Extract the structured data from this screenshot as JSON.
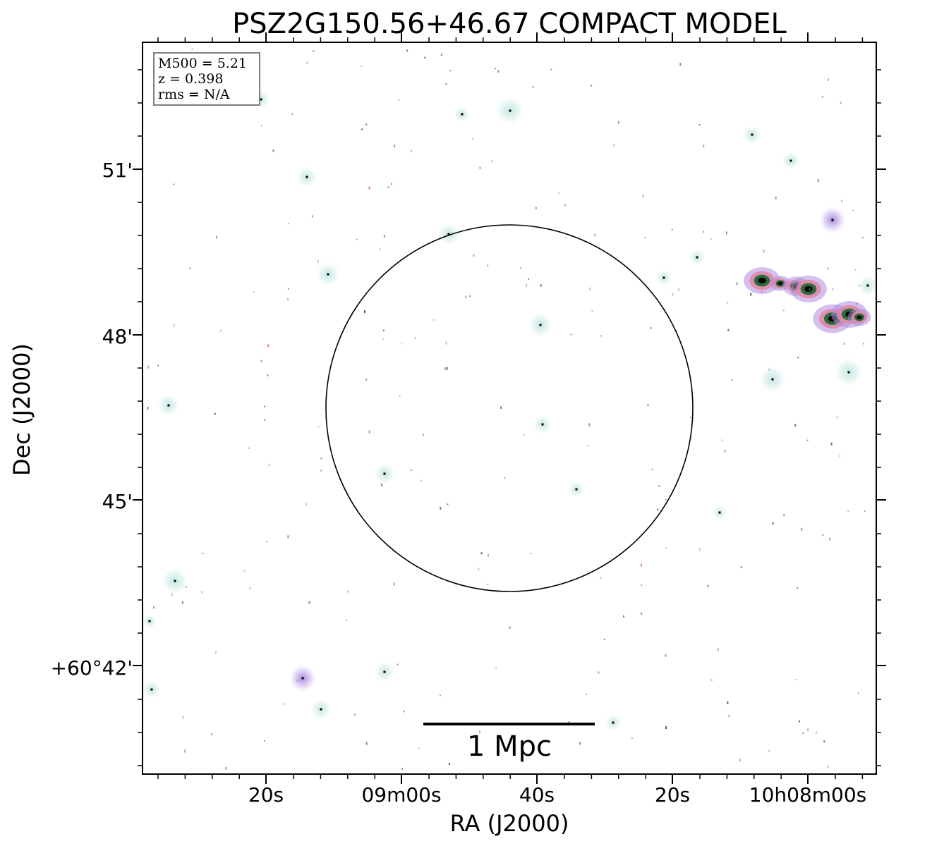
{
  "chart_data": {
    "type": "scatter",
    "title": "PSZ2G150.56+46.67 COMPACT MODEL",
    "xlabel": "RA (J2000)",
    "ylabel": "Dec (J2000)",
    "x_ticks": [
      "20s",
      "09m00s",
      "40s",
      "20s",
      "10h08m00s"
    ],
    "y_ticks": [
      "51'",
      "48'",
      "45'",
      "+60°42'"
    ],
    "info_box": [
      "M500 = 5.21",
      "z = 0.398",
      "rms = N/A"
    ],
    "scale_bar_label": "1 Mpc",
    "colormap": [
      "#e0f3f0",
      "#9fd6d2",
      "#b08ae0",
      "#e08aa6",
      "#2e6b3a",
      "#000000"
    ]
  }
}
